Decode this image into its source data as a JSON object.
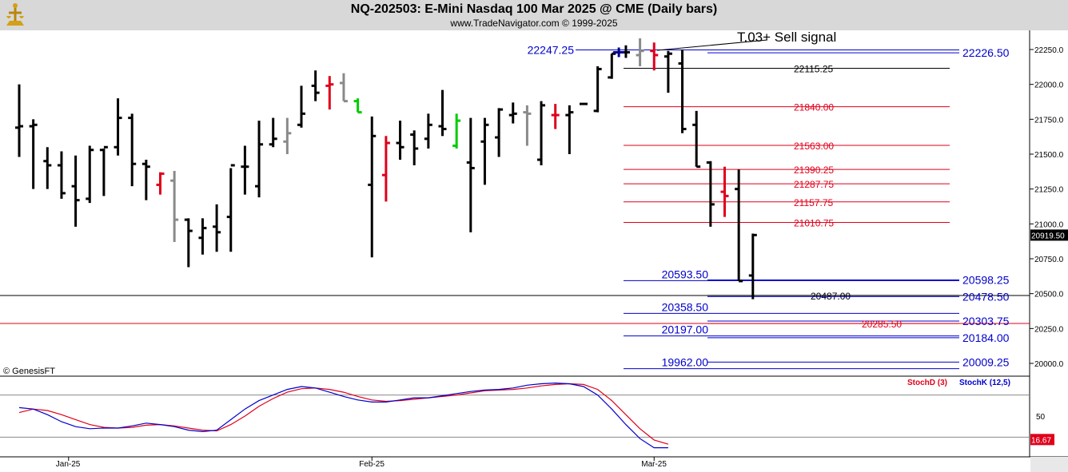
{
  "header": {
    "title": "NQ-202503:  E-Mini Nasdaq 100 Mar 2025 @ CME  (Daily bars)",
    "subtitle": "www.TradeNavigator.com © 1999-2025"
  },
  "copyright": "© GenesisFT",
  "colors": {
    "up": "#000000",
    "down": "#000000",
    "red": "#e0001a",
    "green": "#00cc00",
    "gray": "#8a8a8a",
    "blue": "#0000cc",
    "stochD": "#e0001a",
    "stochK": "#0000cc"
  },
  "chart_data": {
    "type": "bar",
    "title": "NQ-202503:  E-Mini Nasdaq 100 Mar 2025 @ CME  (Daily bars)",
    "ylim": [
      19900,
      22330
    ],
    "y_ticks": [
      "22250.0",
      "22000.0",
      "21750.0",
      "21500.0",
      "21250.0",
      "21000.0",
      "20750.0",
      "20500.0",
      "20250.0",
      "20000.0"
    ],
    "x_ticks": [
      {
        "label": "Jan-25",
        "index": 3.5
      },
      {
        "label": "Feb-25",
        "index": 25
      },
      {
        "label": "Mar-25",
        "index": 45
      }
    ],
    "last_price": "20919.50",
    "bars": [
      {
        "o": 21690,
        "h": 22000,
        "l": 21480,
        "c": 21700,
        "color": "black"
      },
      {
        "o": 21700,
        "h": 21750,
        "l": 21250,
        "c": 21710,
        "color": "black"
      },
      {
        "o": 21450,
        "h": 21550,
        "l": 21250,
        "c": 21420,
        "color": "black"
      },
      {
        "o": 21420,
        "h": 21520,
        "l": 21180,
        "c": 21220,
        "color": "black"
      },
      {
        "o": 21270,
        "h": 21490,
        "l": 20980,
        "c": 21170,
        "color": "black"
      },
      {
        "o": 21180,
        "h": 21560,
        "l": 21150,
        "c": 21530,
        "color": "black"
      },
      {
        "o": 21530,
        "h": 21540,
        "l": 21200,
        "c": 21550,
        "color": "black"
      },
      {
        "o": 21550,
        "h": 21900,
        "l": 21490,
        "c": 21760,
        "color": "black"
      },
      {
        "o": 21760,
        "h": 21790,
        "l": 21270,
        "c": 21430,
        "color": "black"
      },
      {
        "o": 21430,
        "h": 21460,
        "l": 21170,
        "c": 21410,
        "color": "black"
      },
      {
        "o": 21280,
        "h": 21370,
        "l": 21210,
        "c": 21360,
        "color": "red"
      },
      {
        "o": 21310,
        "h": 21380,
        "l": 20870,
        "c": 21030,
        "color": "gray"
      },
      {
        "o": 21030,
        "h": 21040,
        "l": 20690,
        "c": 20950,
        "color": "black"
      },
      {
        "o": 20900,
        "h": 21040,
        "l": 20780,
        "c": 20970,
        "color": "black"
      },
      {
        "o": 20980,
        "h": 21140,
        "l": 20800,
        "c": 20940,
        "color": "black"
      },
      {
        "o": 21050,
        "h": 21400,
        "l": 20800,
        "c": 21420,
        "color": "black"
      },
      {
        "o": 21410,
        "h": 21560,
        "l": 21210,
        "c": 21410,
        "color": "black"
      },
      {
        "o": 21270,
        "h": 21740,
        "l": 21190,
        "c": 21570,
        "color": "black"
      },
      {
        "o": 21570,
        "h": 21760,
        "l": 21550,
        "c": 21610,
        "color": "black"
      },
      {
        "o": 21590,
        "h": 21760,
        "l": 21500,
        "c": 21650,
        "color": "gray"
      },
      {
        "o": 21710,
        "h": 21990,
        "l": 21690,
        "c": 21790,
        "color": "black"
      },
      {
        "o": 21990,
        "h": 22100,
        "l": 21880,
        "c": 21940,
        "color": "black"
      },
      {
        "o": 21990,
        "h": 22060,
        "l": 21820,
        "c": 22000,
        "color": "red"
      },
      {
        "o": 22010,
        "h": 22080,
        "l": 21880,
        "c": 21880,
        "color": "gray"
      },
      {
        "o": 21880,
        "h": 21900,
        "l": 21800,
        "c": 21800,
        "color": "green"
      },
      {
        "o": 21280,
        "h": 21770,
        "l": 20760,
        "c": 21630,
        "color": "black"
      },
      {
        "o": 21350,
        "h": 21630,
        "l": 21160,
        "c": 21580,
        "color": "red"
      },
      {
        "o": 21580,
        "h": 21740,
        "l": 21460,
        "c": 21550,
        "color": "black"
      },
      {
        "o": 21640,
        "h": 21670,
        "l": 21420,
        "c": 21540,
        "color": "black"
      },
      {
        "o": 21610,
        "h": 21790,
        "l": 21540,
        "c": 21710,
        "color": "black"
      },
      {
        "o": 21700,
        "h": 21960,
        "l": 21630,
        "c": 21680,
        "color": "black"
      },
      {
        "o": 21560,
        "h": 21790,
        "l": 21540,
        "c": 21740,
        "color": "green"
      },
      {
        "o": 21440,
        "h": 21760,
        "l": 20940,
        "c": 21400,
        "color": "black"
      },
      {
        "o": 21590,
        "h": 21760,
        "l": 21280,
        "c": 21710,
        "color": "black"
      },
      {
        "o": 21620,
        "h": 21830,
        "l": 21480,
        "c": 21820,
        "color": "black"
      },
      {
        "o": 21780,
        "h": 21870,
        "l": 21720,
        "c": 21790,
        "color": "black"
      },
      {
        "o": 21800,
        "h": 21850,
        "l": 21560,
        "c": 21790,
        "color": "gray"
      },
      {
        "o": 21460,
        "h": 21880,
        "l": 21420,
        "c": 21850,
        "color": "black"
      },
      {
        "o": 21780,
        "h": 21860,
        "l": 21680,
        "c": 21780,
        "color": "red"
      },
      {
        "o": 21780,
        "h": 21850,
        "l": 21500,
        "c": 21800,
        "color": "black"
      },
      {
        "o": 21860,
        "h": 21860,
        "l": 21860,
        "c": 21860,
        "color": "black"
      },
      {
        "o": 21810,
        "h": 22130,
        "l": 21800,
        "c": 22110,
        "color": "black"
      },
      {
        "o": 22050,
        "h": 22220,
        "l": 22040,
        "c": 22220,
        "color": "black"
      },
      {
        "o": 22230,
        "h": 22280,
        "l": 22190,
        "c": 22230,
        "color": "black"
      },
      {
        "o": 22210,
        "h": 22330,
        "l": 22130,
        "c": 22240,
        "color": "gray"
      },
      {
        "o": 22240,
        "h": 22300,
        "l": 22100,
        "c": 22210,
        "color": "red"
      },
      {
        "o": 22200,
        "h": 22240,
        "l": 21940,
        "c": 22220,
        "color": "black"
      },
      {
        "o": 22150,
        "h": 22250,
        "l": 21650,
        "c": 21680,
        "color": "black"
      },
      {
        "o": 21710,
        "h": 21810,
        "l": 21410,
        "c": 21410,
        "color": "black"
      },
      {
        "o": 21440,
        "h": 21450,
        "l": 20980,
        "c": 21140,
        "color": "black"
      },
      {
        "o": 21230,
        "h": 21410,
        "l": 21050,
        "c": 21200,
        "color": "red"
      },
      {
        "o": 21250,
        "h": 21390,
        "l": 20590,
        "c": 20590,
        "color": "black"
      },
      {
        "o": 20630,
        "h": 20930,
        "l": 20460,
        "c": 20920,
        "color": "black"
      }
    ],
    "levels": [
      {
        "price": "22247.25",
        "value": 22247.25,
        "color": "blue",
        "side": "left"
      },
      {
        "price": "22226.50",
        "value": 22226.5,
        "color": "blue",
        "side": "right"
      },
      {
        "price": "22115.25",
        "value": 22115.25,
        "color": "black",
        "side": "mid"
      },
      {
        "price": "21840.00",
        "value": 21840,
        "color": "red",
        "side": "mid"
      },
      {
        "price": "21563.00",
        "value": 21563,
        "color": "red",
        "side": "mid"
      },
      {
        "price": "21390.25",
        "value": 21390.25,
        "color": "red",
        "side": "mid"
      },
      {
        "price": "21287.75",
        "value": 21287.75,
        "color": "red",
        "side": "mid"
      },
      {
        "price": "21157.75",
        "value": 21157.75,
        "color": "red",
        "side": "mid"
      },
      {
        "price": "21010.75",
        "value": 21010.75,
        "color": "red",
        "side": "mid"
      },
      {
        "price": "20593.50",
        "value": 20593.5,
        "color": "blue",
        "side": "left"
      },
      {
        "price": "20598.25",
        "value": 20598.25,
        "color": "blue",
        "side": "right"
      },
      {
        "price": "20487.00",
        "value": 20487,
        "color": "black",
        "side": "mid2"
      },
      {
        "price": "20478.50",
        "value": 20478.5,
        "color": "blue",
        "side": "right"
      },
      {
        "price": "20358.50",
        "value": 20358.5,
        "color": "blue",
        "side": "left"
      },
      {
        "price": "20303.75",
        "value": 20303.75,
        "color": "blue",
        "side": "right"
      },
      {
        "price": "20285.50",
        "value": 20285.5,
        "color": "red",
        "side": "mid3"
      },
      {
        "price": "20197.00",
        "value": 20197,
        "color": "blue",
        "side": "left"
      },
      {
        "price": "20184.00",
        "value": 20184,
        "color": "blue",
        "side": "right"
      },
      {
        "price": "20009.25",
        "value": 20009.25,
        "color": "blue",
        "side": "right"
      },
      {
        "price": "19962.00",
        "value": 19962,
        "color": "blue",
        "side": "left"
      }
    ],
    "annotation": "T.03+ Sell signal",
    "stochastic": {
      "legend_d": "StochD (3)",
      "legend_k": "StochK (12,5)",
      "level_label": "50",
      "last_d": "16.67",
      "k": [
        62,
        60,
        52,
        42,
        35,
        32,
        33,
        33,
        36,
        40,
        38,
        35,
        30,
        28,
        30,
        45,
        60,
        72,
        80,
        88,
        92,
        90,
        84,
        78,
        73,
        70,
        70,
        73,
        76,
        76,
        79,
        82,
        85,
        87,
        88,
        90,
        94,
        96,
        97,
        96,
        92,
        80,
        60,
        38,
        18,
        5,
        5
      ],
      "d": [
        55,
        60,
        58,
        52,
        45,
        38,
        34,
        33,
        34,
        37,
        38,
        36,
        33,
        30,
        29,
        38,
        50,
        64,
        75,
        84,
        89,
        90,
        88,
        84,
        78,
        73,
        71,
        72,
        74,
        76,
        78,
        80,
        83,
        86,
        87,
        88,
        90,
        93,
        95,
        96,
        95,
        88,
        72,
        52,
        32,
        16,
        10
      ]
    }
  }
}
